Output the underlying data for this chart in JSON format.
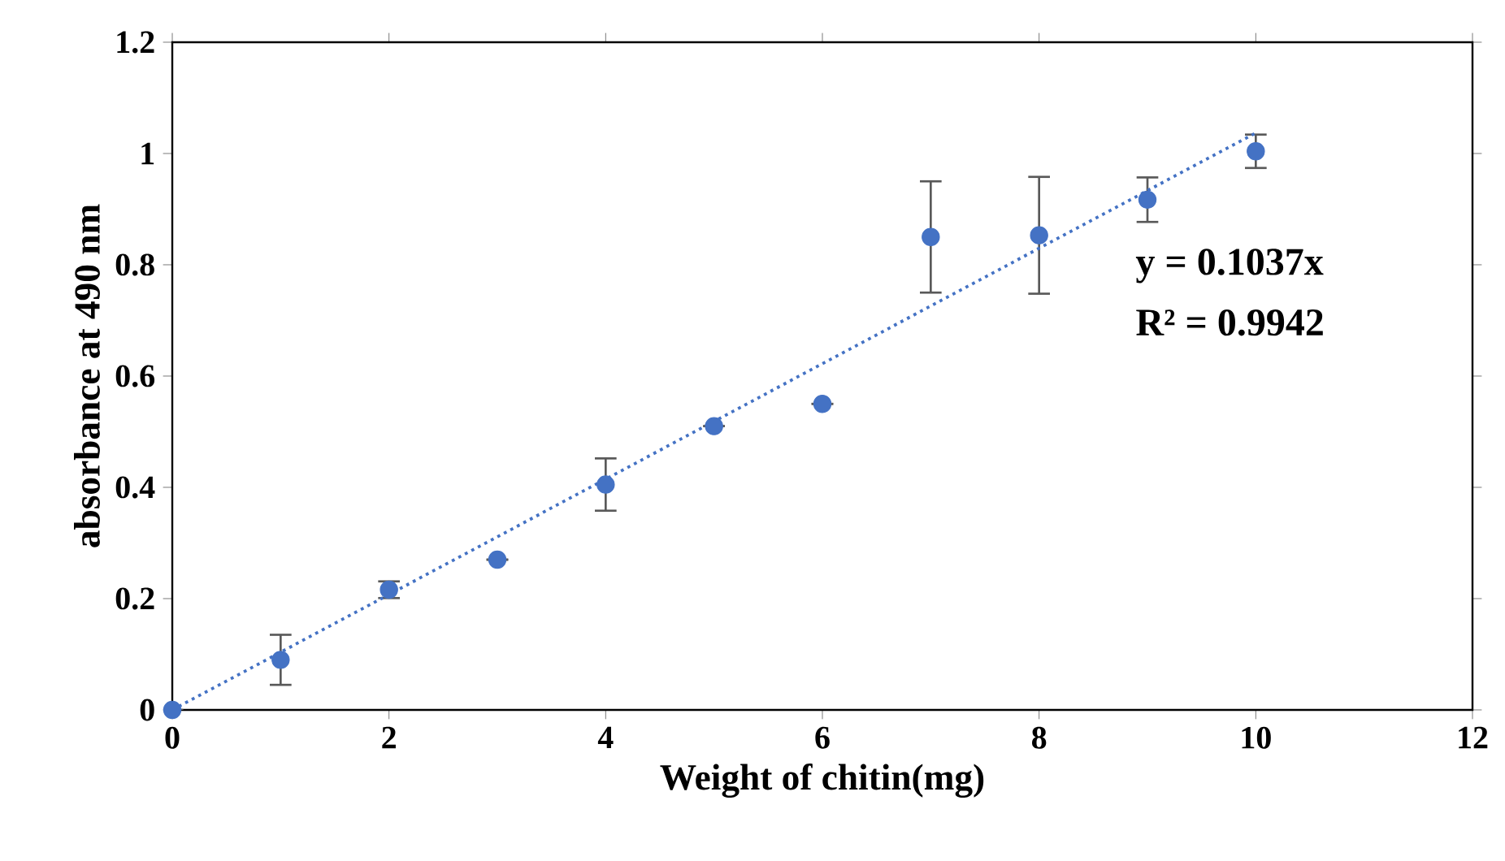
{
  "chart_data": {
    "type": "scatter",
    "xlabel": "Weight of chitin(mg)",
    "ylabel": "absorbance at 490 nm",
    "xlim": [
      0,
      12
    ],
    "ylim": [
      0,
      1.2
    ],
    "xticks": [
      0,
      2,
      4,
      6,
      8,
      10,
      12
    ],
    "yticks": [
      0,
      0.2,
      0.4,
      0.6,
      0.8,
      1,
      1.2
    ],
    "grid": false,
    "annotations": [
      "y = 0.1037x",
      "R² = 0.9942"
    ],
    "series": [
      {
        "color": "#4472c4",
        "marker": "circle",
        "x": [
          0,
          1,
          2,
          3,
          4,
          5,
          6,
          7,
          8,
          9,
          10
        ],
        "values": [
          0,
          0.09,
          0.216,
          0.27,
          0.405,
          0.51,
          0.55,
          0.85,
          0.853,
          0.917,
          1.004
        ],
        "errors": [
          null,
          0.045,
          0.015,
          null,
          0.047,
          null,
          null,
          0.1,
          0.105,
          0.04,
          0.03
        ]
      },
      {
        "type": "line",
        "color": "#4472c4",
        "marker": "none",
        "line_style": "dotted",
        "x": [
          0,
          10
        ],
        "values": [
          0,
          1.037
        ]
      }
    ]
  }
}
